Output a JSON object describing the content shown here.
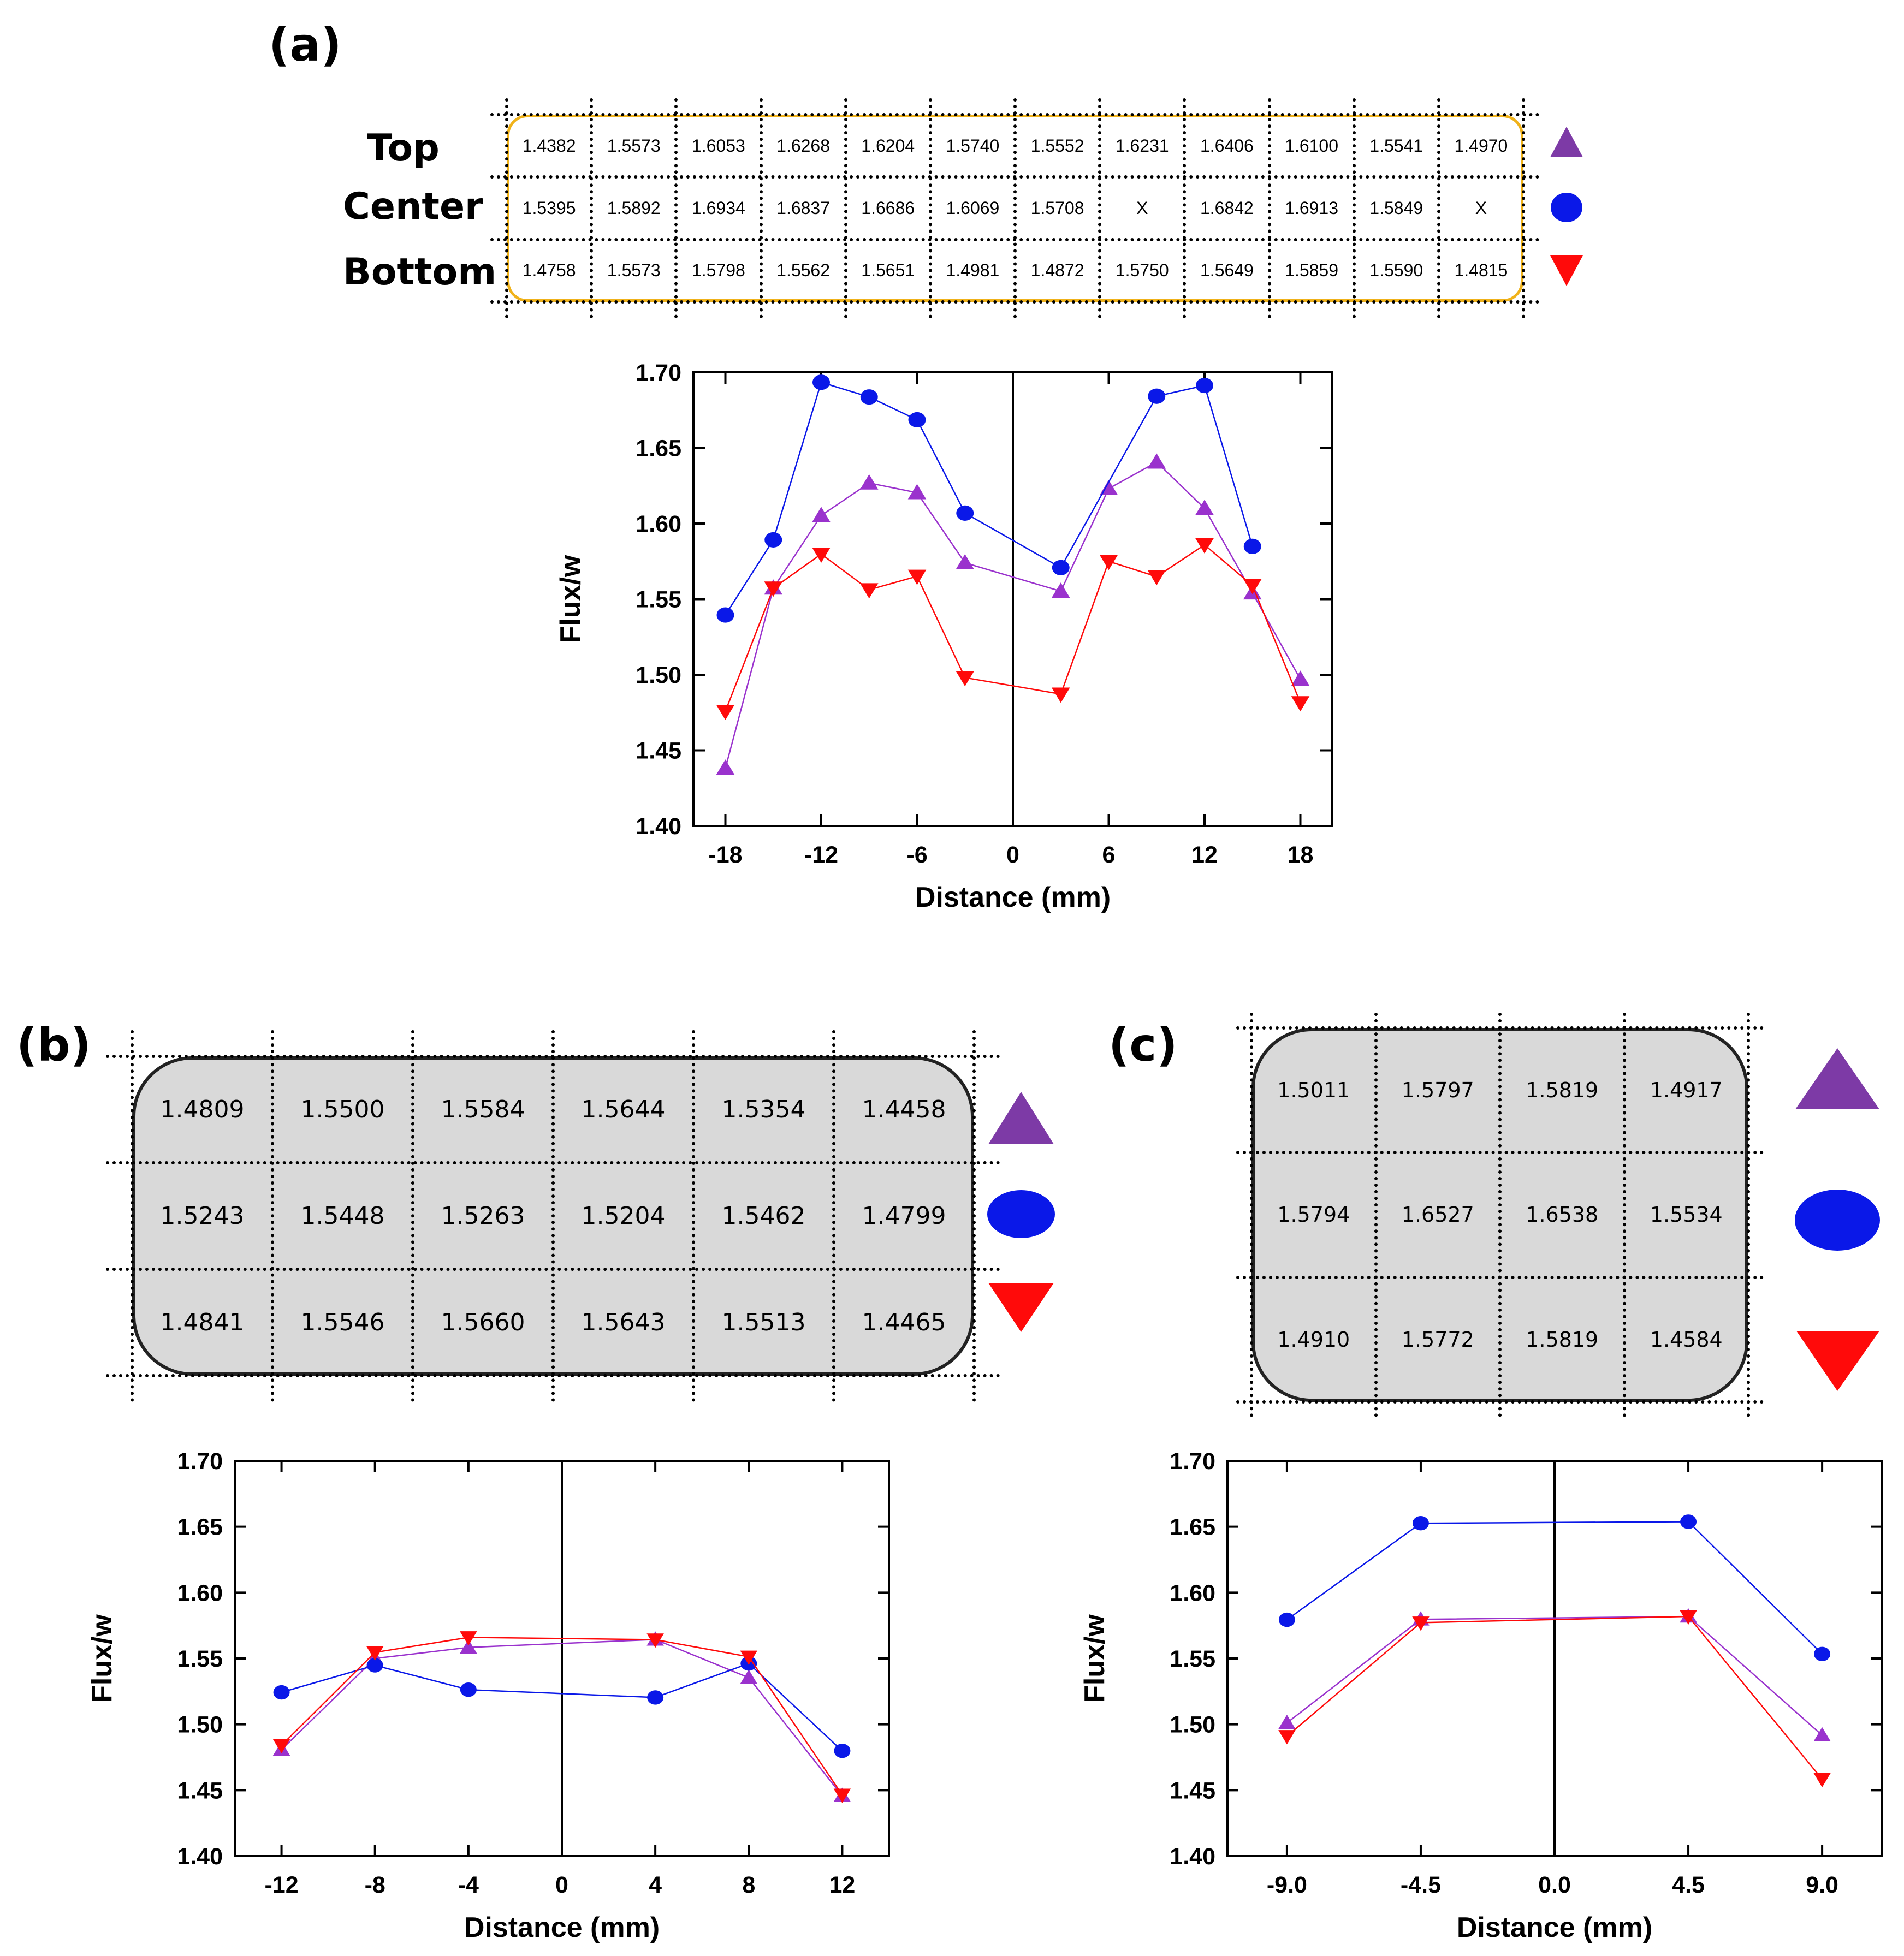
{
  "colors": {
    "top": "#9a32cd",
    "top_legend": "#7d3aa6",
    "center": "#0a18e8",
    "bottom": "#ff0a0a",
    "box_a_border": "#f0b21a",
    "box_bc_fill": "#d9d9d9"
  },
  "legend_icons": {
    "top": "triangle-up-icon",
    "center": "circle-icon",
    "bottom": "triangle-down-icon"
  },
  "panels": {
    "a": {
      "label": "(a)",
      "row_labels": [
        "Top",
        "Center",
        "Bottom"
      ],
      "table": [
        [
          "1.4382",
          "1.5573",
          "1.6053",
          "1.6268",
          "1.6204",
          "1.5740",
          "1.5552",
          "1.6231",
          "1.6406",
          "1.6100",
          "1.5541",
          "1.4970"
        ],
        [
          "1.5395",
          "1.5892",
          "1.6934",
          "1.6837",
          "1.6686",
          "1.6069",
          "1.5708",
          "X",
          "1.6842",
          "1.6913",
          "1.5849",
          "X"
        ],
        [
          "1.4758",
          "1.5573",
          "1.5798",
          "1.5562",
          "1.5651",
          "1.4981",
          "1.4872",
          "1.5750",
          "1.5649",
          "1.5859",
          "1.5590",
          "1.4815"
        ]
      ]
    },
    "b": {
      "label": "(b)",
      "table": [
        [
          "1.4809",
          "1.5500",
          "1.5584",
          "1.5644",
          "1.5354",
          "1.4458"
        ],
        [
          "1.5243",
          "1.5448",
          "1.5263",
          "1.5204",
          "1.5462",
          "1.4799"
        ],
        [
          "1.4841",
          "1.5546",
          "1.5660",
          "1.5643",
          "1.5513",
          "1.4465"
        ]
      ]
    },
    "c": {
      "label": "(c)",
      "table": [
        [
          "1.5011",
          "1.5797",
          "1.5819",
          "1.4917"
        ],
        [
          "1.5794",
          "1.6527",
          "1.6538",
          "1.5534"
        ],
        [
          "1.4910",
          "1.5772",
          "1.5819",
          "1.4584"
        ]
      ]
    }
  },
  "chart_data": [
    {
      "type": "line",
      "panel": "(a)",
      "xlabel": "Distance (mm)",
      "ylabel": "Flux/w",
      "xlim": [
        -20,
        20
      ],
      "ylim": [
        1.4,
        1.7
      ],
      "xticks": [
        -18,
        -12,
        -6,
        0,
        6,
        12,
        18
      ],
      "xtick_labels": [
        "-18",
        "-12",
        "-6",
        "0",
        "6",
        "12",
        "18"
      ],
      "yticks": [
        1.4,
        1.45,
        1.5,
        1.55,
        1.6,
        1.65,
        1.7
      ],
      "ytick_labels": [
        "1.40",
        "1.45",
        "1.50",
        "1.55",
        "1.60",
        "1.65",
        "1.70"
      ],
      "vline_x": 0,
      "series": [
        {
          "key": "top",
          "marker": "triangle-up",
          "x": [
            -18,
            -15,
            -12,
            -9,
            -6,
            -3,
            3,
            6,
            9,
            12,
            15,
            18
          ],
          "y": [
            1.4382,
            1.5573,
            1.6053,
            1.6268,
            1.6204,
            1.574,
            1.5552,
            1.6231,
            1.6406,
            1.61,
            1.5541,
            1.497
          ]
        },
        {
          "key": "center",
          "marker": "circle",
          "x": [
            -18,
            -15,
            -12,
            -9,
            -6,
            -3,
            3,
            9,
            12,
            15
          ],
          "y": [
            1.5395,
            1.5892,
            1.6934,
            1.6837,
            1.6686,
            1.6069,
            1.5708,
            1.6842,
            1.6913,
            1.5849
          ]
        },
        {
          "key": "bottom",
          "marker": "triangle-down",
          "x": [
            -18,
            -15,
            -12,
            -9,
            -6,
            -3,
            3,
            6,
            9,
            12,
            15,
            18
          ],
          "y": [
            1.4758,
            1.5573,
            1.5798,
            1.5562,
            1.5651,
            1.4981,
            1.4872,
            1.575,
            1.5649,
            1.5859,
            1.559,
            1.4815
          ]
        }
      ]
    },
    {
      "type": "line",
      "panel": "(b)",
      "xlabel": "Distance (mm)",
      "ylabel": "Flux/w",
      "xlim": [
        -14,
        14
      ],
      "ylim": [
        1.4,
        1.7
      ],
      "xticks": [
        -12,
        -8,
        -4,
        0,
        4,
        8,
        12
      ],
      "xtick_labels": [
        "-12",
        "-8",
        "-4",
        "0",
        "4",
        "8",
        "12"
      ],
      "yticks": [
        1.4,
        1.45,
        1.5,
        1.55,
        1.6,
        1.65,
        1.7
      ],
      "ytick_labels": [
        "1.40",
        "1.45",
        "1.50",
        "1.55",
        "1.60",
        "1.65",
        "1.70"
      ],
      "vline_x": 0,
      "series": [
        {
          "key": "top",
          "marker": "triangle-up",
          "x": [
            -12,
            -8,
            -4,
            4,
            8,
            12
          ],
          "y": [
            1.4809,
            1.55,
            1.5584,
            1.5644,
            1.5354,
            1.4458
          ]
        },
        {
          "key": "center",
          "marker": "circle",
          "x": [
            -12,
            -8,
            -4,
            4,
            8,
            12
          ],
          "y": [
            1.5243,
            1.5448,
            1.5263,
            1.5204,
            1.5462,
            1.4799
          ]
        },
        {
          "key": "bottom",
          "marker": "triangle-down",
          "x": [
            -12,
            -8,
            -4,
            4,
            8,
            12
          ],
          "y": [
            1.4841,
            1.5546,
            1.566,
            1.5643,
            1.5513,
            1.4465
          ]
        }
      ]
    },
    {
      "type": "line",
      "panel": "(c)",
      "xlabel": "Distance (mm)",
      "ylabel": "Flux/w",
      "xlim": [
        -11,
        11
      ],
      "ylim": [
        1.4,
        1.7
      ],
      "xticks": [
        -9.0,
        -4.5,
        0.0,
        4.5,
        9.0
      ],
      "xtick_labels": [
        "-9.0",
        "-4.5",
        "0.0",
        "4.5",
        "9.0"
      ],
      "yticks": [
        1.4,
        1.45,
        1.5,
        1.55,
        1.6,
        1.65,
        1.7
      ],
      "ytick_labels": [
        "1.40",
        "1.45",
        "1.50",
        "1.55",
        "1.60",
        "1.65",
        "1.70"
      ],
      "vline_x": 0,
      "series": [
        {
          "key": "top",
          "marker": "triangle-up",
          "x": [
            -9.0,
            -4.5,
            4.5,
            9.0
          ],
          "y": [
            1.5011,
            1.5797,
            1.5819,
            1.4917
          ]
        },
        {
          "key": "center",
          "marker": "circle",
          "x": [
            -9.0,
            -4.5,
            4.5,
            9.0
          ],
          "y": [
            1.5794,
            1.6527,
            1.6538,
            1.5534
          ]
        },
        {
          "key": "bottom",
          "marker": "triangle-down",
          "x": [
            -9.0,
            -4.5,
            4.5,
            9.0
          ],
          "y": [
            1.491,
            1.5772,
            1.5819,
            1.4584
          ]
        }
      ]
    }
  ]
}
